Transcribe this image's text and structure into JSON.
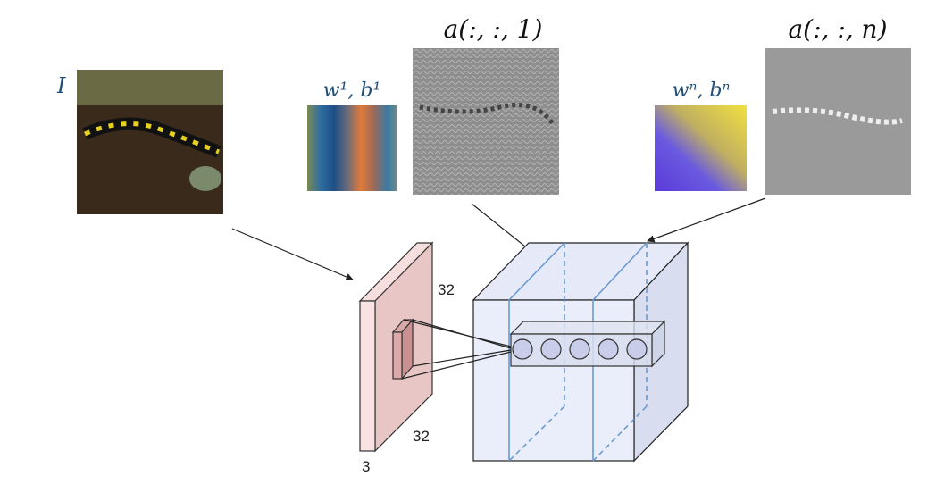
{
  "input_label": "I",
  "filter_1_label": "w¹, b¹",
  "activation_1_label": "a(:, :, 1)",
  "filter_n_label": "wⁿ, bⁿ",
  "activation_n_label": "a(:, :, n)",
  "input_volume": {
    "height": "32",
    "width": "32",
    "depth": "3"
  }
}
